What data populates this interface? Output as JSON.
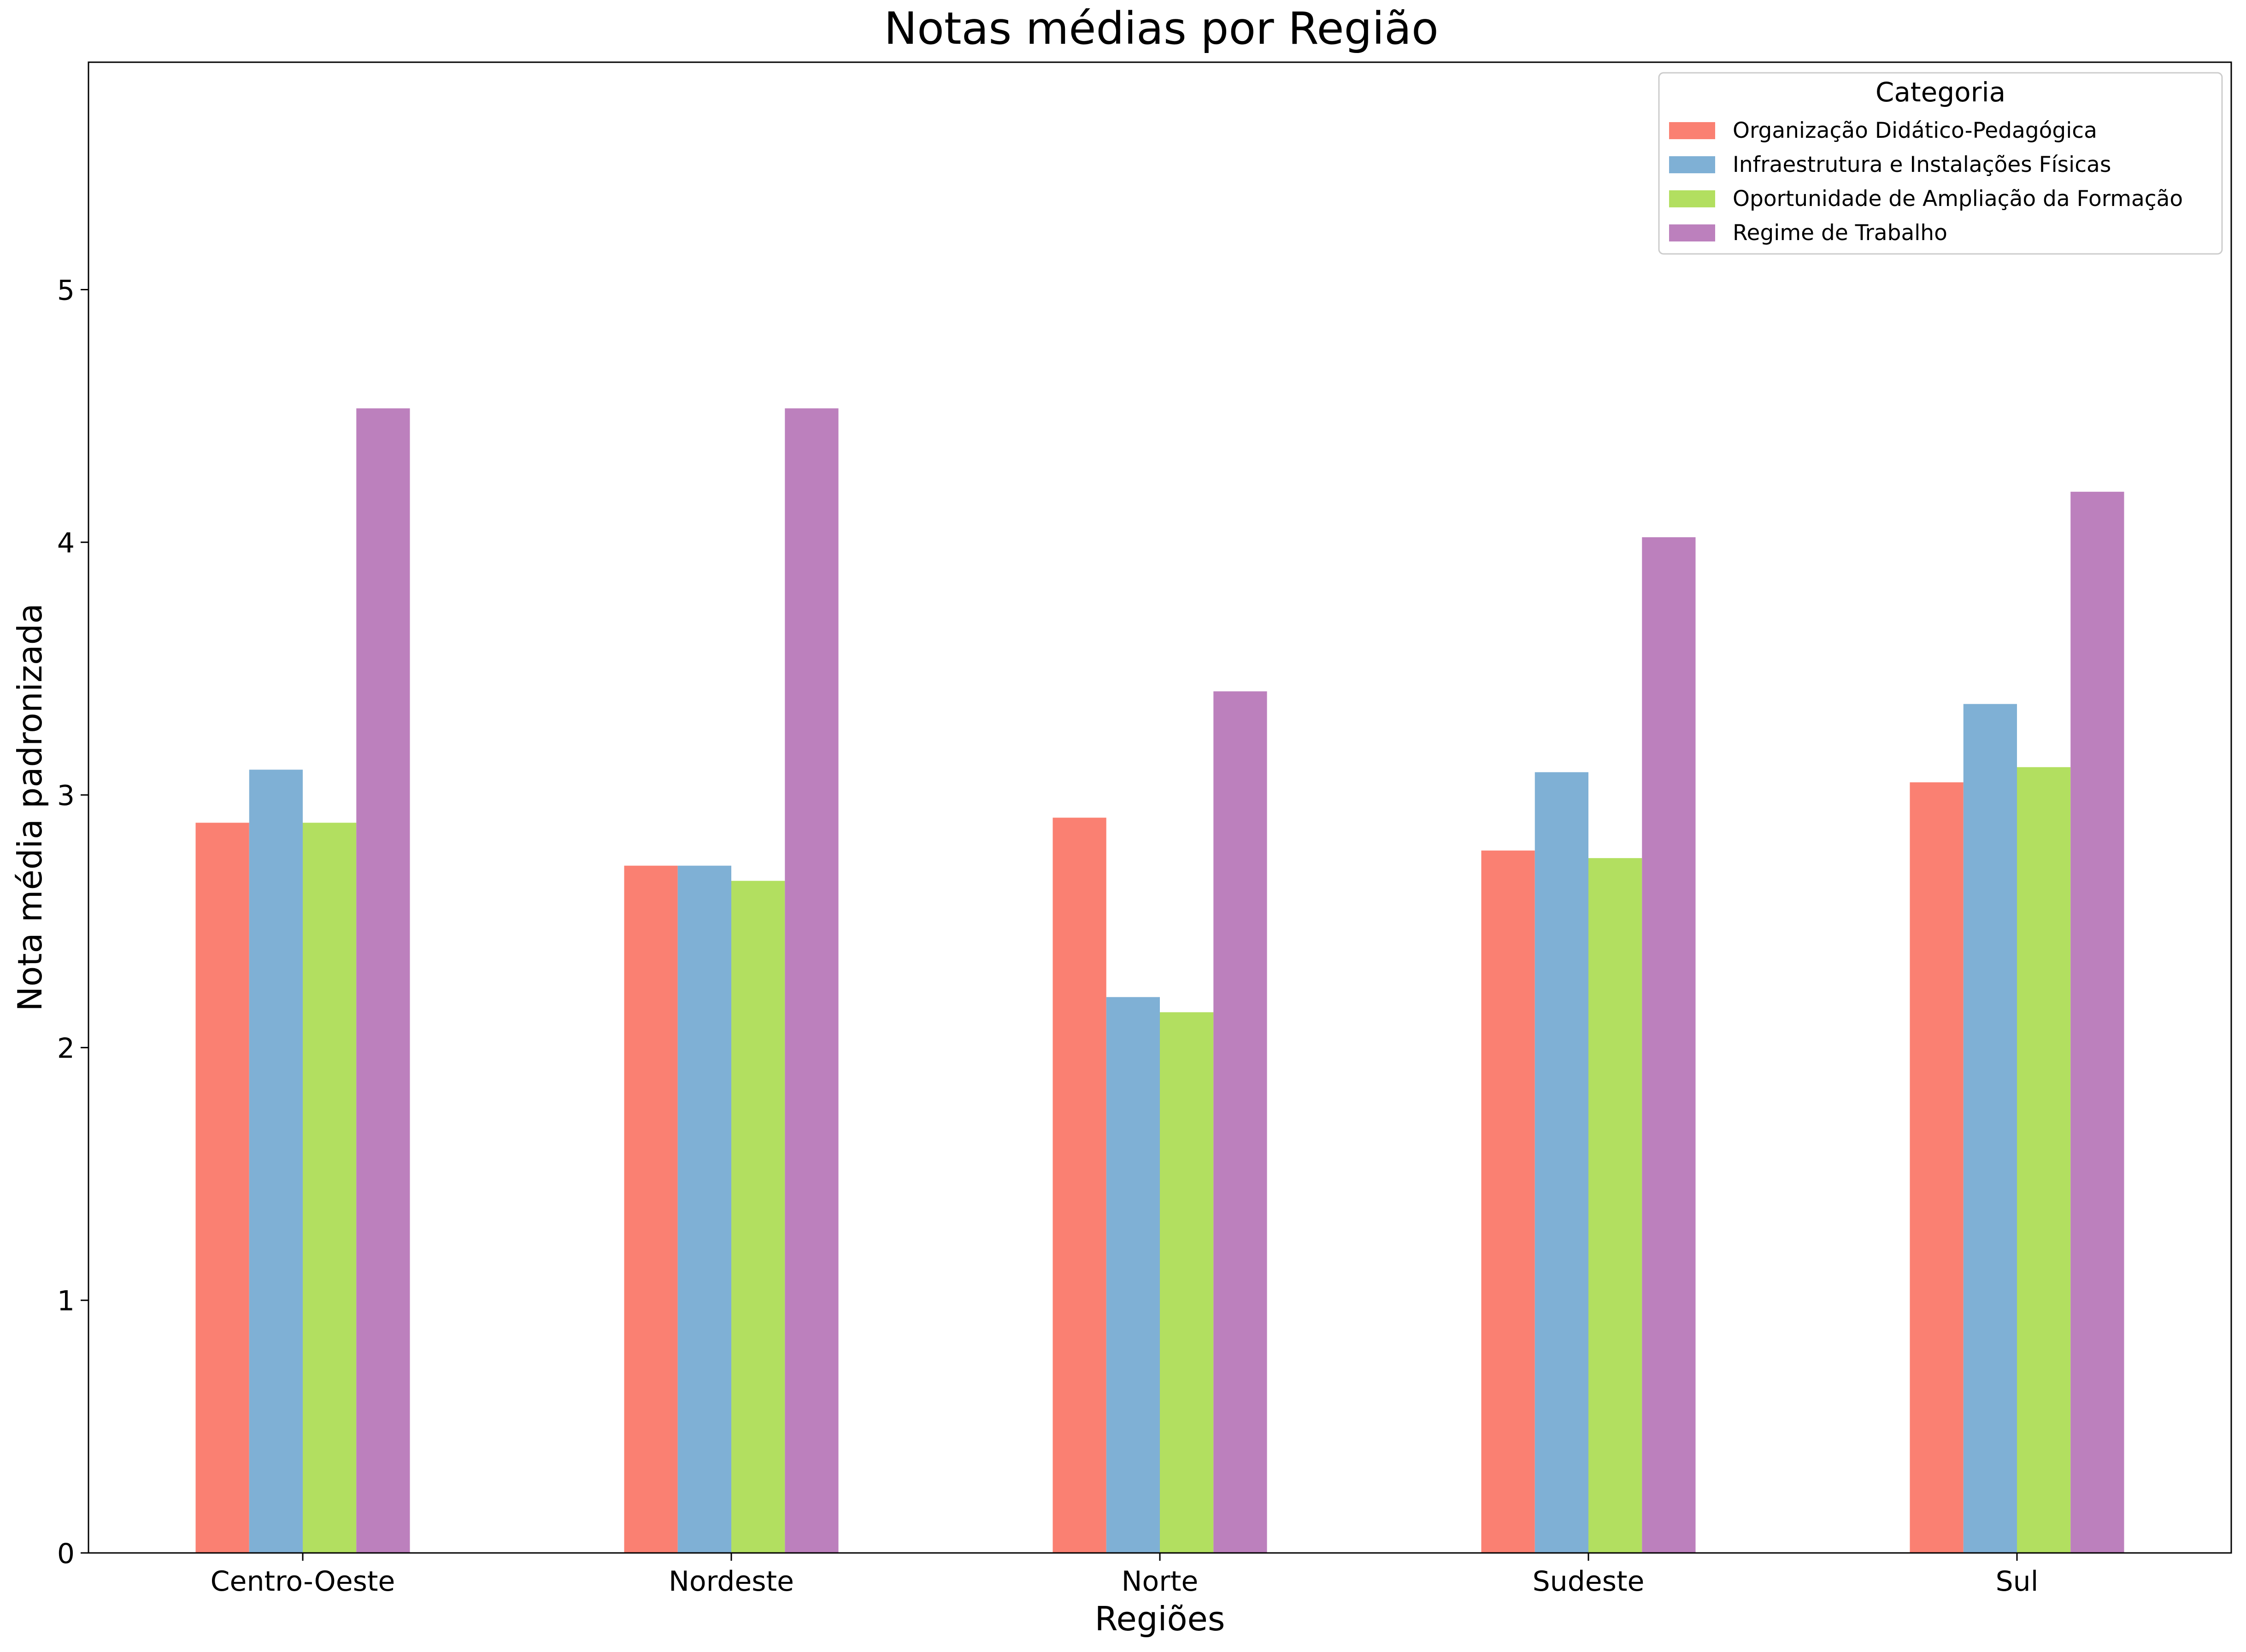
{
  "chart_data": {
    "type": "bar",
    "title": "Notas médias por Região",
    "xlabel": "Regiões",
    "ylabel": "Nota média padronizada",
    "categories": [
      "Centro-Oeste",
      "Nordeste",
      "Norte",
      "Sudeste",
      "Sul"
    ],
    "ylim": [
      0,
      5.9
    ],
    "yticks": [
      "0",
      "1",
      "2",
      "3",
      "4",
      "5"
    ],
    "grid": false,
    "legend": {
      "title": "Categoria",
      "placement": "top-right"
    },
    "series": [
      {
        "name": "Organização Didático-Pedagógica",
        "color": "#fa8072",
        "values": [
          2.89,
          2.72,
          2.91,
          2.78,
          3.05
        ]
      },
      {
        "name": "Infraestrutura e Instalações Físicas",
        "color": "#7fb0d5",
        "values": [
          3.1,
          2.72,
          2.2,
          3.09,
          3.36
        ]
      },
      {
        "name": "Oportunidade de Ampliação da Formação",
        "color": "#b2df60",
        "values": [
          2.89,
          2.66,
          2.14,
          2.75,
          3.11
        ]
      },
      {
        "name": "Regime de Trabalho",
        "color": "#bc80bd",
        "values": [
          4.53,
          4.53,
          3.41,
          4.02,
          4.2
        ]
      }
    ]
  }
}
